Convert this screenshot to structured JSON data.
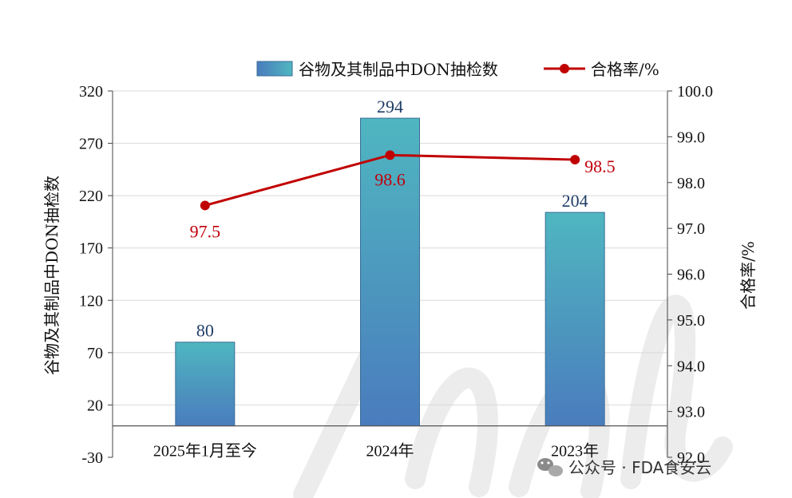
{
  "chart_data": {
    "type": "bar",
    "categories": [
      "2025年1月至今",
      "2024年",
      "2023年"
    ],
    "series": [
      {
        "name": "谷物及其制品中DON抽检数",
        "type": "bar",
        "axis": "left",
        "values": [
          80,
          294,
          204
        ],
        "color": "#3f8fb8"
      },
      {
        "name": "合格率/%",
        "type": "line",
        "axis": "right",
        "values": [
          97.5,
          98.6,
          98.5
        ],
        "color": "#c00000"
      }
    ],
    "ylabel": "谷物及其制品中DON抽检数",
    "y2label": "合格率/%",
    "ylim": [
      -30,
      320
    ],
    "yticks": [
      -30,
      20,
      70,
      120,
      170,
      220,
      270,
      320
    ],
    "y2lim": [
      92.0,
      100.0
    ],
    "y2ticks": [
      "92.0",
      "93.0",
      "94.0",
      "95.0",
      "96.0",
      "97.0",
      "98.0",
      "99.0",
      "100.0"
    ],
    "bar_labels": [
      "80",
      "294",
      "204"
    ],
    "line_labels": [
      "97.5",
      "98.6",
      "98.5"
    ],
    "grid": true,
    "legend_position": "top-right"
  },
  "watermark": {
    "text": "公众号 · FDA食安云",
    "icon": "wechat-icon"
  },
  "colors": {
    "bar_top": "#4fb6c0",
    "bar_bottom": "#4a7cbd",
    "line": "#c00000",
    "bar_label": "#1f3d66"
  }
}
